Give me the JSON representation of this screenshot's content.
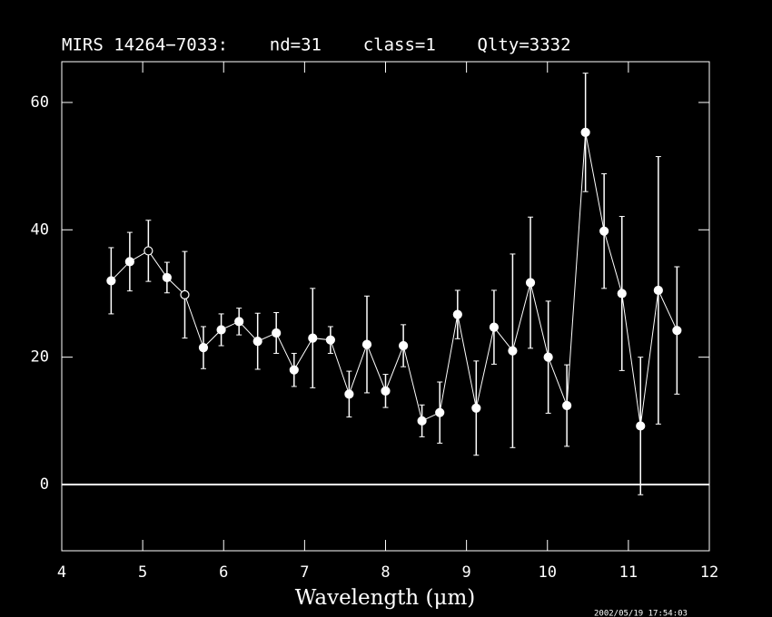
{
  "chart_data": {
    "type": "errorbar",
    "title": "MIRS 14264−7033:    nd=31    class=1    Qlty=3332",
    "x_label": "Wavelength (μm)",
    "timestamp": "2002/05/19 17:54:03",
    "x": [
      4.61,
      4.84,
      5.07,
      5.3,
      5.52,
      5.75,
      5.97,
      6.19,
      6.42,
      6.65,
      6.87,
      7.1,
      7.32,
      7.55,
      7.77,
      8.0,
      8.22,
      8.45,
      8.67,
      8.89,
      9.12,
      9.34,
      9.57,
      9.79,
      10.01,
      10.24,
      10.47,
      10.7,
      10.92,
      11.15,
      11.37,
      11.6
    ],
    "values": [
      32,
      35,
      36.7,
      32.5,
      29.8,
      21.5,
      24.3,
      25.6,
      22.5,
      23.8,
      18,
      23,
      22.7,
      14.2,
      22,
      14.7,
      21.8,
      10,
      11.3,
      26.7,
      12,
      24.7,
      21,
      31.7,
      20,
      12.4,
      55.3,
      39.8,
      30,
      9.2,
      30.5,
      24.2
    ],
    "errors": [
      5.2,
      4.6,
      4.8,
      2.4,
      6.8,
      3.3,
      2.5,
      2.1,
      4.4,
      3.2,
      2.6,
      7.8,
      2.1,
      3.6,
      7.6,
      2.6,
      3.3,
      2.5,
      4.8,
      3.8,
      7.4,
      5.8,
      15.2,
      10.3,
      8.8,
      6.4,
      9.3,
      9.0,
      12.1,
      10.8,
      21,
      10
    ],
    "open_markers": [
      2,
      4
    ],
    "color": "#ffffff",
    "xlim": [
      4,
      12
    ],
    "xticks": [
      4,
      5,
      6,
      7,
      8,
      9,
      10,
      11,
      12
    ],
    "ylim": [
      -10.4,
      66.4
    ],
    "yticks": [
      0,
      20,
      40,
      60
    ],
    "zero_line": true
  }
}
